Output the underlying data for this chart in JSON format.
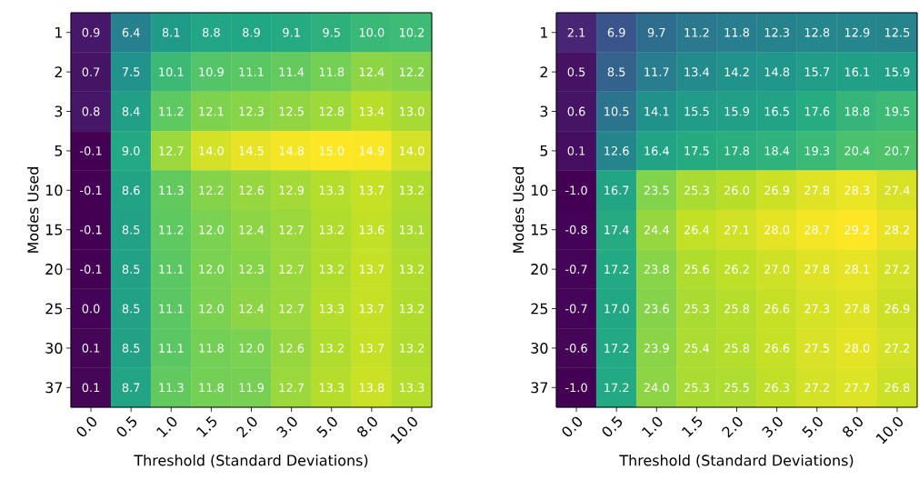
{
  "chart_data": [
    {
      "type": "heatmap",
      "xlabel": "Threshold (Standard Deviations)",
      "ylabel": "Modes Used",
      "cell_labels": [
        [
          "0.9",
          "6.4",
          "8.1",
          "8.8",
          "8.9",
          "9.1",
          "9.5",
          "10.0",
          "10.2"
        ],
        [
          "0.7",
          "7.5",
          "10.1",
          "10.9",
          "11.1",
          "11.4",
          "11.8",
          "12.4",
          "12.2"
        ],
        [
          "0.8",
          "8.4",
          "11.2",
          "12.1",
          "12.3",
          "12.5",
          "12.8",
          "13.4",
          "13.0"
        ],
        [
          "-0.1",
          "9.0",
          "12.7",
          "14.0",
          "14.5",
          "14.8",
          "15.0",
          "14.9",
          "14.0"
        ],
        [
          "-0.1",
          "8.6",
          "11.3",
          "12.2",
          "12.6",
          "12.9",
          "13.3",
          "13.7",
          "13.2"
        ],
        [
          "-0.1",
          "8.5",
          "11.2",
          "12.0",
          "12.4",
          "12.7",
          "13.2",
          "13.6",
          "13.1"
        ],
        [
          "-0.1",
          "8.5",
          "11.1",
          "12.0",
          "12.3",
          "12.7",
          "13.2",
          "13.7",
          "13.2"
        ],
        [
          "0.0",
          "8.5",
          "11.1",
          "12.0",
          "12.4",
          "12.7",
          "13.3",
          "13.7",
          "13.2"
        ],
        [
          "0.1",
          "8.5",
          "11.1",
          "11.8",
          "12.0",
          "12.6",
          "13.2",
          "13.7",
          "13.2"
        ],
        [
          "0.1",
          "8.7",
          "11.3",
          "11.8",
          "11.9",
          "12.7",
          "13.3",
          "13.8",
          "13.3"
        ]
      ],
      "categories": [
        "0.0",
        "0.5",
        "1.0",
        "1.5",
        "2.0",
        "3.0",
        "5.0",
        "8.0",
        "10.0"
      ],
      "y_categories": [
        "1",
        "2",
        "3",
        "5",
        "10",
        "15",
        "20",
        "25",
        "30",
        "37"
      ],
      "cells": [
        [
          0.9,
          6.4,
          8.1,
          8.8,
          8.9,
          9.1,
          9.5,
          10.0,
          10.2
        ],
        [
          0.7,
          7.5,
          10.1,
          10.9,
          11.1,
          11.4,
          11.8,
          12.4,
          12.2
        ],
        [
          0.8,
          8.4,
          11.2,
          12.1,
          12.3,
          12.5,
          12.8,
          13.4,
          13.0
        ],
        [
          -0.1,
          9.0,
          12.7,
          14.0,
          14.5,
          14.8,
          15.0,
          14.9,
          14.0
        ],
        [
          -0.1,
          8.6,
          11.3,
          12.2,
          12.6,
          12.9,
          13.3,
          13.7,
          13.2
        ],
        [
          -0.1,
          8.5,
          11.2,
          12.0,
          12.4,
          12.7,
          13.2,
          13.6,
          13.1
        ],
        [
          -0.1,
          8.5,
          11.1,
          12.0,
          12.3,
          12.7,
          13.2,
          13.7,
          13.2
        ],
        [
          0.0,
          8.5,
          11.1,
          12.0,
          12.4,
          12.7,
          13.3,
          13.7,
          13.2
        ],
        [
          0.1,
          8.5,
          11.1,
          11.8,
          12.0,
          12.6,
          13.2,
          13.7,
          13.2
        ],
        [
          0.1,
          8.7,
          11.3,
          11.8,
          11.9,
          12.7,
          13.3,
          13.8,
          13.3
        ]
      ]
    },
    {
      "type": "heatmap",
      "xlabel": "Threshold (Standard Deviations)",
      "ylabel": "Modes Used",
      "cell_labels": [
        [
          "2.1",
          "6.9",
          "9.7",
          "11.2",
          "11.8",
          "12.3",
          "12.8",
          "12.9",
          "12.5"
        ],
        [
          "0.5",
          "8.5",
          "11.7",
          "13.4",
          "14.2",
          "14.8",
          "15.7",
          "16.1",
          "15.9"
        ],
        [
          "0.6",
          "10.5",
          "14.1",
          "15.5",
          "15.9",
          "16.5",
          "17.6",
          "18.8",
          "19.5"
        ],
        [
          "0.1",
          "12.6",
          "16.4",
          "17.5",
          "17.8",
          "18.4",
          "19.3",
          "20.4",
          "20.7"
        ],
        [
          "-1.0",
          "16.7",
          "23.5",
          "25.3",
          "26.0",
          "26.9",
          "27.8",
          "28.3",
          "27.4"
        ],
        [
          "-0.8",
          "17.4",
          "24.4",
          "26.4",
          "27.1",
          "28.0",
          "28.7",
          "29.2",
          "28.2"
        ],
        [
          "-0.7",
          "17.2",
          "23.8",
          "25.6",
          "26.2",
          "27.0",
          "27.8",
          "28.1",
          "27.2"
        ],
        [
          "-0.7",
          "17.0",
          "23.6",
          "25.3",
          "25.8",
          "26.6",
          "27.3",
          "27.8",
          "26.9"
        ],
        [
          "-0.6",
          "17.2",
          "23.9",
          "25.4",
          "25.8",
          "26.6",
          "27.5",
          "28.0",
          "27.2"
        ],
        [
          "-1.0",
          "17.2",
          "24.0",
          "25.3",
          "25.5",
          "26.3",
          "27.2",
          "27.7",
          "26.8"
        ]
      ],
      "categories": [
        "0.0",
        "0.5",
        "1.0",
        "1.5",
        "2.0",
        "3.0",
        "5.0",
        "8.0",
        "10.0"
      ],
      "y_categories": [
        "1",
        "2",
        "3",
        "5",
        "10",
        "15",
        "20",
        "25",
        "30",
        "37"
      ],
      "cells": [
        [
          2.1,
          6.9,
          9.7,
          11.2,
          11.8,
          12.3,
          12.8,
          12.9,
          12.5
        ],
        [
          0.5,
          8.5,
          11.7,
          13.4,
          14.2,
          14.8,
          15.7,
          16.1,
          15.9
        ],
        [
          0.6,
          10.5,
          14.1,
          15.5,
          15.9,
          16.5,
          17.6,
          18.8,
          19.5
        ],
        [
          0.1,
          12.6,
          16.4,
          17.5,
          17.8,
          18.4,
          19.3,
          20.4,
          20.7
        ],
        [
          -1.0,
          16.7,
          23.5,
          25.3,
          26.0,
          26.9,
          27.8,
          28.3,
          27.4
        ],
        [
          -0.8,
          17.4,
          24.4,
          26.4,
          27.1,
          28.0,
          28.7,
          29.2,
          28.2
        ],
        [
          -0.7,
          17.2,
          23.8,
          25.6,
          26.2,
          27.0,
          27.8,
          28.1,
          27.2
        ],
        [
          -0.7,
          17.0,
          23.6,
          25.3,
          25.8,
          26.6,
          27.3,
          27.8,
          26.9
        ],
        [
          -0.6,
          17.2,
          23.9,
          25.4,
          25.8,
          26.6,
          27.5,
          28.0,
          27.2
        ],
        [
          -1.0,
          17.2,
          24.0,
          25.3,
          25.5,
          26.3,
          27.2,
          27.7,
          26.8
        ]
      ]
    }
  ]
}
